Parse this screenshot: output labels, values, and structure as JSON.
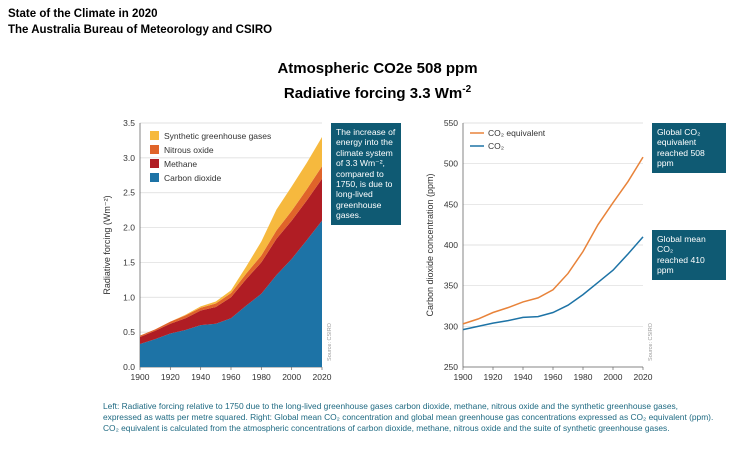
{
  "header": {
    "line1": "State of the Climate in 2020",
    "line2": "The Australia Bureau of Meteorology and CSIRO"
  },
  "title": {
    "line1": "Atmospheric CO2e 508 ppm",
    "line2_main": "Radiative forcing 3.3 Wm",
    "line2_sup": "-2"
  },
  "colors": {
    "carbon_dioxide": "#1d73a6",
    "methane": "#b01d24",
    "nitrous_oxide": "#e0642a",
    "synthetic": "#f6b93e",
    "co2_equivalent_line": "#e8833a",
    "co2_line": "#1d73a6",
    "callout_bg": "#0f5a73"
  },
  "left_callout": [
    "The increase of",
    "energy into the",
    "climate system",
    "of 3.3 Wm⁻²,",
    "compared to",
    "1750, is due to",
    "long-lived",
    "greenhouse",
    "gases."
  ],
  "right_callout_top": [
    "Global CO₂",
    "equivalent",
    "reached 508 ppm"
  ],
  "right_callout_bottom": [
    "Global mean CO₂",
    "reached 410 ppm"
  ],
  "source_label": "Source: CSIRO",
  "caption": "Left: Radiative forcing relative to 1750 due to the long-lived greenhouse gases carbon dioxide, methane, nitrous oxide and the synthetic greenhouse gases, expressed as watts per metre squared. Right: Global mean CO₂ concentration and global mean greenhouse gas concentrations expressed as CO₂ equivalent (ppm). CO₂ equivalent is calculated from the atmospheric concentrations of carbon dioxide, methane, nitrous oxide and the suite of synthetic greenhouse gases.",
  "chart_data": [
    {
      "type": "area",
      "stacked": true,
      "ylabel": "Radiative forcing (Wm⁻²)",
      "xlabel": "",
      "xlim": [
        1900,
        2020
      ],
      "ylim": [
        0,
        3.5
      ],
      "xticks": [
        1900,
        1920,
        1940,
        1960,
        1980,
        2000,
        2020
      ],
      "yticks": [
        0.0,
        0.5,
        1.0,
        1.5,
        2.0,
        2.5,
        3.0,
        3.5
      ],
      "legend_position": "top-left",
      "x": [
        1900,
        1910,
        1920,
        1930,
        1940,
        1950,
        1960,
        1970,
        1980,
        1990,
        2000,
        2010,
        2020
      ],
      "series": [
        {
          "name": "Carbon dioxide",
          "values": [
            0.33,
            0.4,
            0.48,
            0.53,
            0.6,
            0.62,
            0.7,
            0.88,
            1.05,
            1.32,
            1.55,
            1.82,
            2.1
          ]
        },
        {
          "name": "Methane",
          "values": [
            0.1,
            0.12,
            0.14,
            0.17,
            0.21,
            0.24,
            0.3,
            0.38,
            0.45,
            0.52,
            0.55,
            0.57,
            0.6
          ]
        },
        {
          "name": "Nitrous oxide",
          "values": [
            0.02,
            0.02,
            0.03,
            0.04,
            0.04,
            0.05,
            0.06,
            0.08,
            0.1,
            0.12,
            0.14,
            0.16,
            0.18
          ]
        },
        {
          "name": "Synthetic greenhouse gases",
          "values": [
            0.0,
            0.0,
            0.0,
            0.01,
            0.02,
            0.03,
            0.04,
            0.1,
            0.2,
            0.3,
            0.35,
            0.38,
            0.42
          ]
        }
      ]
    },
    {
      "type": "line",
      "ylabel": "Carbon dioxide concentration (ppm)",
      "xlabel": "",
      "xlim": [
        1900,
        2020
      ],
      "ylim": [
        250,
        550
      ],
      "xticks": [
        1900,
        1920,
        1940,
        1960,
        1980,
        2000,
        2020
      ],
      "yticks": [
        250,
        300,
        350,
        400,
        450,
        500,
        550
      ],
      "legend_position": "top-left",
      "x": [
        1900,
        1910,
        1920,
        1930,
        1940,
        1950,
        1960,
        1970,
        1980,
        1990,
        2000,
        2010,
        2020
      ],
      "series": [
        {
          "name": "CO₂ equivalent",
          "values": [
            303,
            309,
            317,
            323,
            330,
            335,
            345,
            365,
            392,
            425,
            452,
            478,
            508
          ]
        },
        {
          "name": "CO₂",
          "values": [
            296,
            300,
            304,
            307,
            311,
            312,
            317,
            326,
            339,
            354,
            369,
            389,
            410
          ]
        }
      ]
    }
  ]
}
